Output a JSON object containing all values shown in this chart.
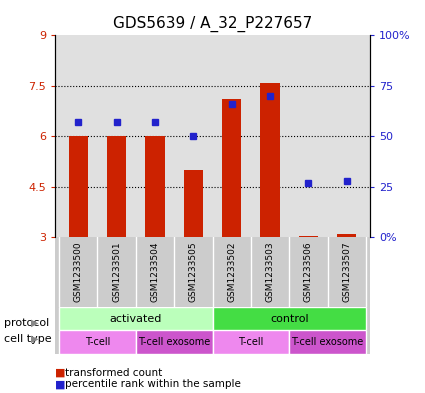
{
  "title": "GDS5639 / A_32_P227657",
  "samples": [
    "GSM1233500",
    "GSM1233501",
    "GSM1233504",
    "GSM1233505",
    "GSM1233502",
    "GSM1233503",
    "GSM1233506",
    "GSM1233507"
  ],
  "transformed_counts": [
    6.0,
    6.0,
    6.0,
    5.0,
    7.1,
    7.6,
    3.05,
    3.1
  ],
  "percentile_ranks": [
    57,
    57,
    57,
    50,
    66,
    70,
    27,
    28
  ],
  "ylim_left": [
    3,
    9
  ],
  "ylim_right": [
    0,
    100
  ],
  "yticks_left": [
    3,
    4.5,
    6,
    7.5,
    9
  ],
  "yticks_right": [
    0,
    25,
    50,
    75,
    100
  ],
  "ytick_labels_left": [
    "3",
    "4.5",
    "6",
    "7.5",
    "9"
  ],
  "ytick_labels_right": [
    "0%",
    "25",
    "50",
    "75",
    "100%"
  ],
  "bar_color": "#cc2200",
  "square_color": "#2222cc",
  "bar_bottom": 3.0,
  "protocol_groups": [
    {
      "label": "activated",
      "start": 0,
      "end": 4,
      "color": "#bbffbb"
    },
    {
      "label": "control",
      "start": 4,
      "end": 8,
      "color": "#44dd44"
    }
  ],
  "cell_type_groups": [
    {
      "label": "T-cell",
      "start": 0,
      "end": 2,
      "color": "#ee88ee"
    },
    {
      "label": "T-cell exosome",
      "start": 2,
      "end": 4,
      "color": "#cc55cc"
    },
    {
      "label": "T-cell",
      "start": 4,
      "end": 6,
      "color": "#ee88ee"
    },
    {
      "label": "T-cell exosome",
      "start": 6,
      "end": 8,
      "color": "#cc55cc"
    }
  ],
  "legend_items": [
    {
      "label": "transformed count",
      "color": "#cc2200"
    },
    {
      "label": "percentile rank within the sample",
      "color": "#2222cc"
    }
  ],
  "bar_width": 0.5,
  "title_fontsize": 11,
  "axis_color_left": "#cc2200",
  "axis_color_right": "#2222cc",
  "bg_color": "#ffffff",
  "plot_bg_color": "#e0e0e0",
  "label_band_color": "#cccccc"
}
